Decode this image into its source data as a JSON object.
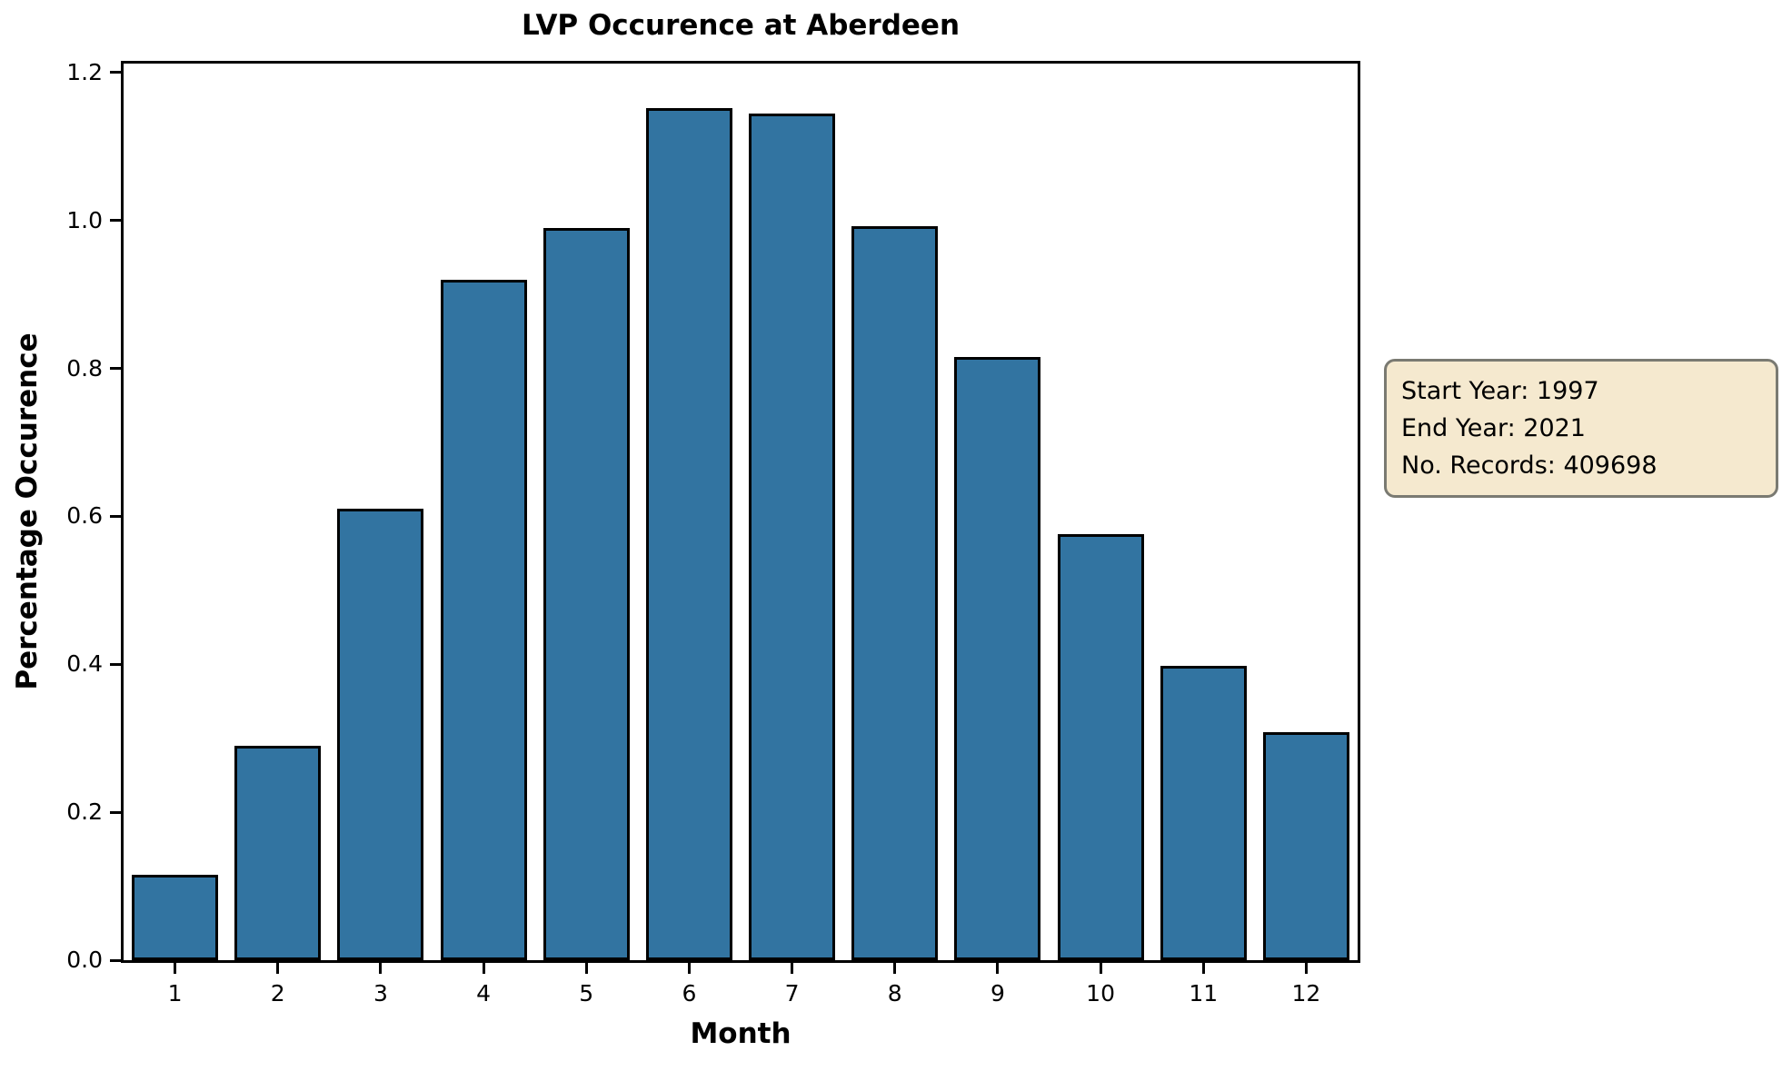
{
  "title": "LVP Occurence at Aberdeen",
  "axes": {
    "xlabel": "Month",
    "ylabel": "Percentage Occurence",
    "x_tick_labels": [
      "1",
      "2",
      "3",
      "4",
      "5",
      "6",
      "7",
      "8",
      "9",
      "10",
      "11",
      "12"
    ],
    "y_tick_labels": [
      "0.0",
      "0.2",
      "0.4",
      "0.6",
      "0.8",
      "1.0",
      "1.2"
    ]
  },
  "annotation": {
    "lines": [
      "Start Year: 1997",
      "End Year: 2021",
      "No. Records: 409698"
    ],
    "bg_color": "#f5e9cf",
    "border_color": "#7a7a72"
  },
  "chart_data": {
    "type": "bar",
    "title": "LVP Occurence at Aberdeen",
    "xlabel": "Month",
    "ylabel": "Percentage Occurence",
    "categories": [
      1,
      2,
      3,
      4,
      5,
      6,
      7,
      8,
      9,
      10,
      11,
      12
    ],
    "values": [
      0.115,
      0.29,
      0.61,
      0.92,
      0.99,
      1.152,
      1.145,
      0.992,
      0.815,
      0.576,
      0.398,
      0.308
    ],
    "ylim": [
      0,
      1.212
    ],
    "y_ticks": [
      0.0,
      0.2,
      0.4,
      0.6,
      0.8,
      1.0,
      1.2
    ],
    "grid": false,
    "legend": false,
    "bar_color": "#3274a1",
    "bar_edge_color": "#000000"
  }
}
